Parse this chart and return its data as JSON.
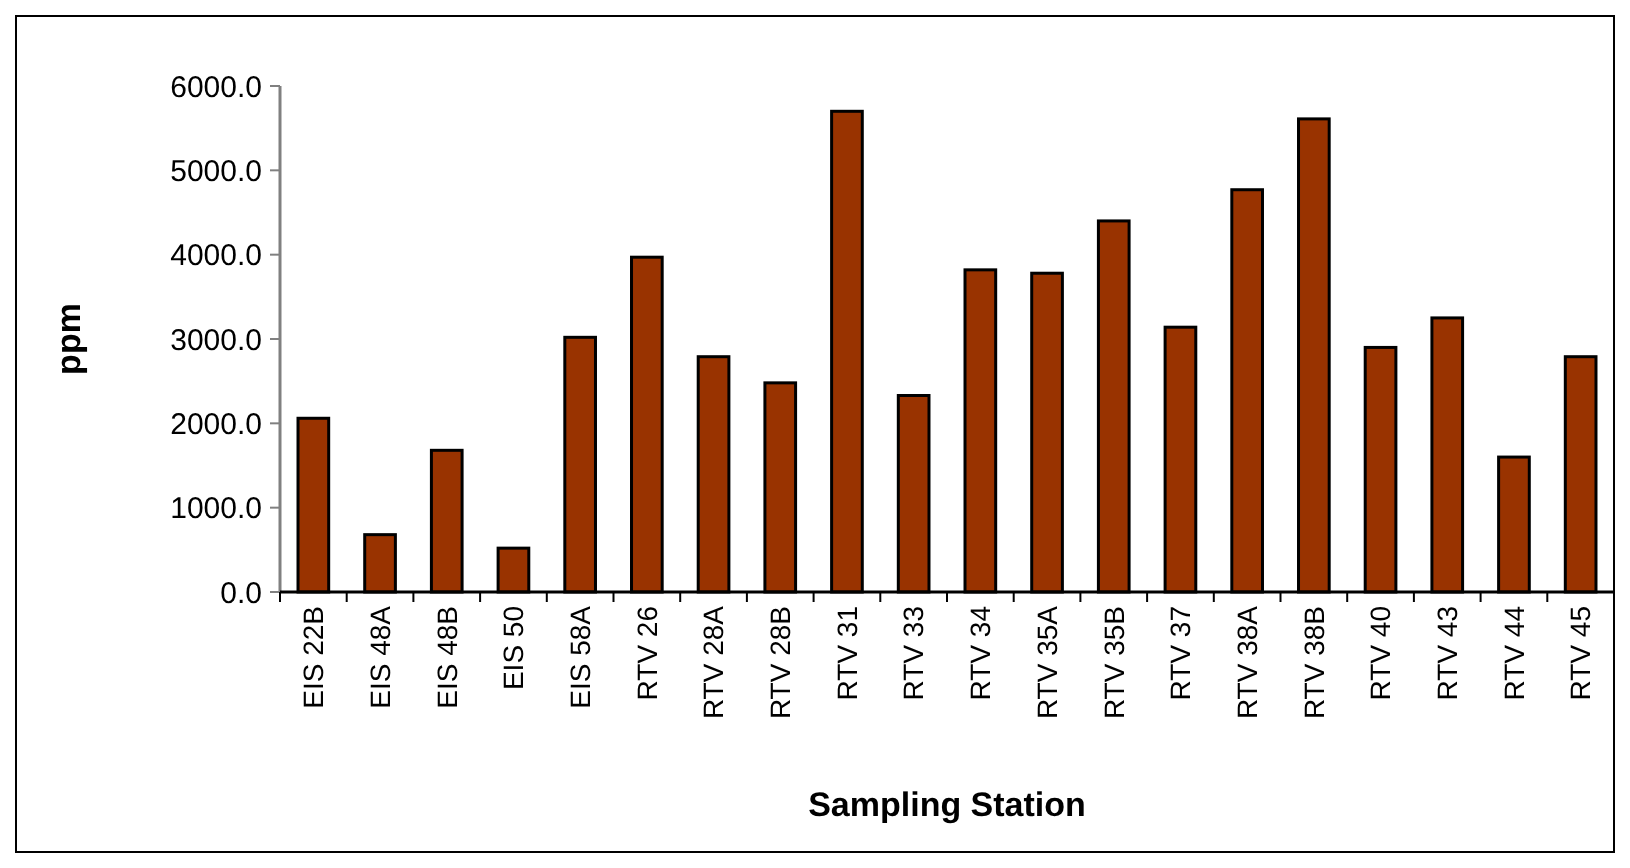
{
  "chart_data": {
    "type": "bar",
    "xlabel": "Sampling Station",
    "ylabel": "ppm",
    "categories": [
      "EIS 22B",
      "EIS 48A",
      "EIS 48B",
      "EIS 50",
      "EIS 58A",
      "RTV 26",
      "RTV 28A",
      "RTV 28B",
      "RTV 31",
      "RTV 33",
      "RTV 34",
      "RTV 35A",
      "RTV 35B",
      "RTV 37",
      "RTV 38A",
      "RTV 38B",
      "RTV 40",
      "RTV 43",
      "RTV 44",
      "RTV 45"
    ],
    "values": [
      2060,
      680,
      1680,
      520,
      3020,
      3970,
      2790,
      2480,
      5700,
      2330,
      3820,
      3780,
      4400,
      3140,
      4770,
      5610,
      2900,
      3250,
      1600,
      2790
    ],
    "color": "#993300",
    "ylim": [
      0,
      6000
    ],
    "yticks": [
      {
        "value": 0,
        "label": "0.0"
      },
      {
        "value": 1000,
        "label": "1000.0"
      },
      {
        "value": 2000,
        "label": "2000.0"
      },
      {
        "value": 3000,
        "label": "3000.0"
      },
      {
        "value": 4000,
        "label": "4000.0"
      },
      {
        "value": 5000,
        "label": "5000.0"
      },
      {
        "value": 6000,
        "label": "6000.0"
      }
    ],
    "grid": false
  }
}
